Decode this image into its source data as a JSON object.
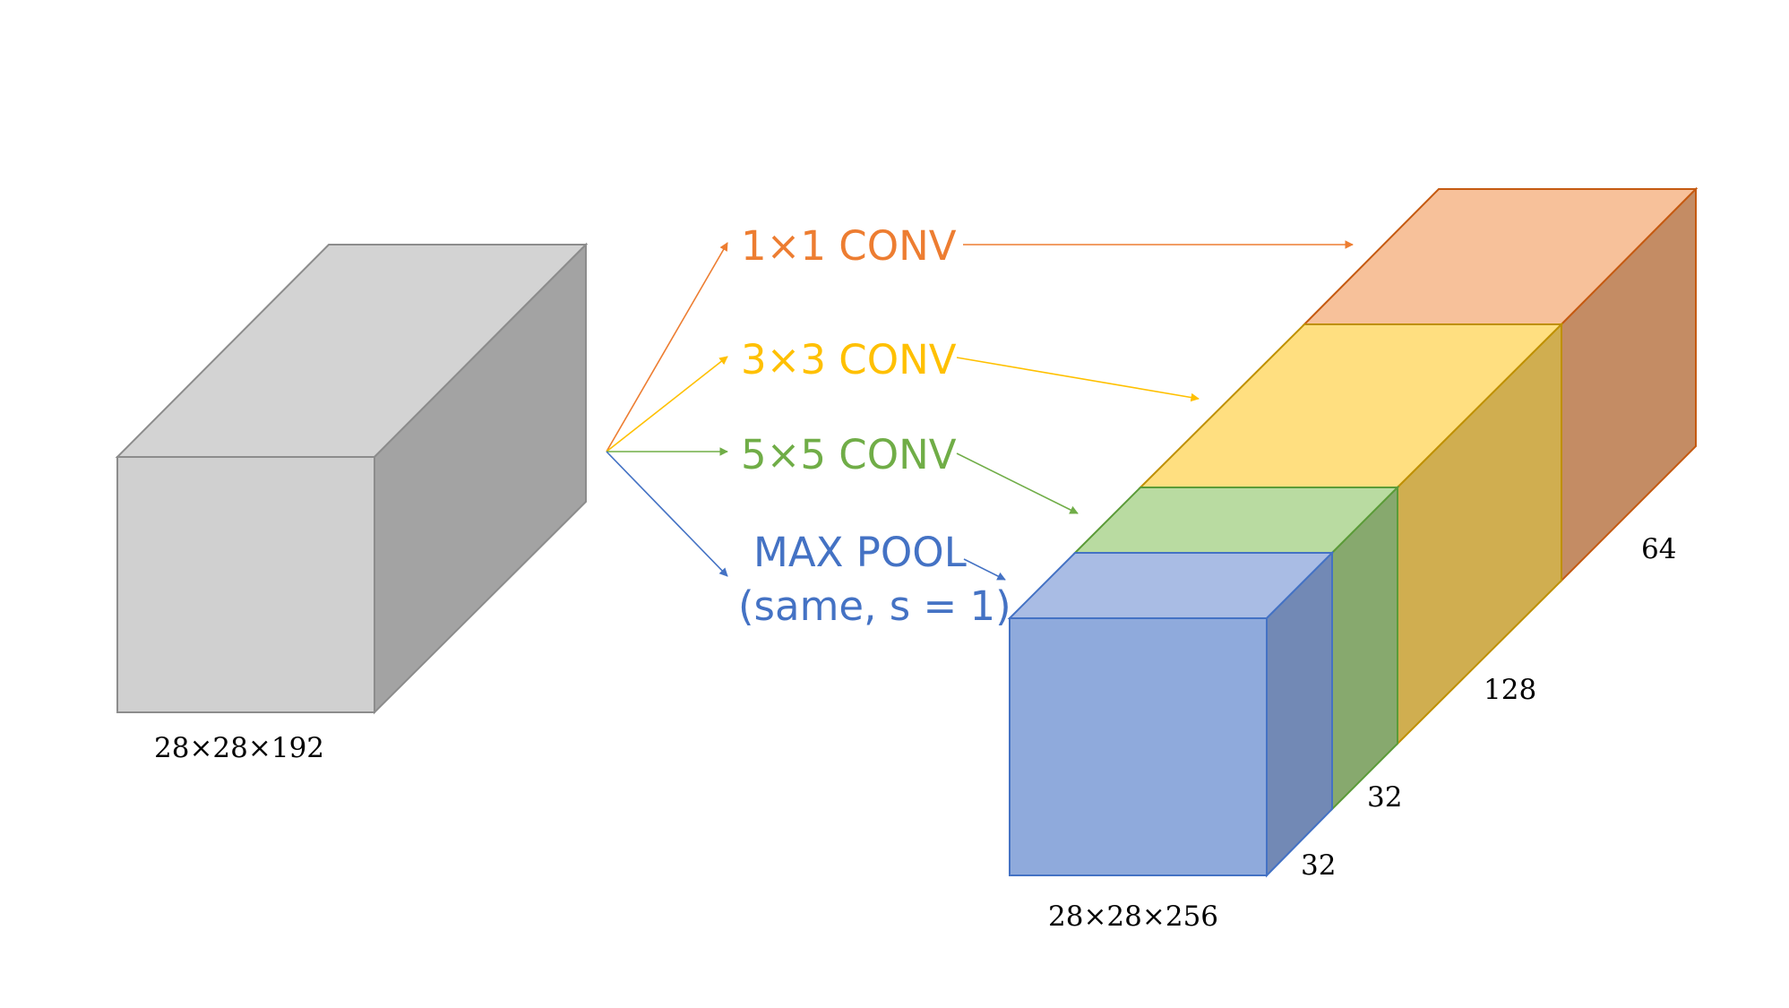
{
  "input_volume": {
    "dims_label": "28×28×192",
    "colors": {
      "front": "#D0D0D0",
      "top": "#D3D3D3",
      "side": "#A3A3A3",
      "stroke": "#8C8C8C"
    }
  },
  "operations": [
    {
      "label": "1×1 CONV",
      "color": "#ED7D31"
    },
    {
      "label": "3×3 CONV",
      "color": "#FFC000"
    },
    {
      "label": "5×5 CONV",
      "color": "#70AD47"
    },
    {
      "label_line1": "MAX POOL",
      "label_line2": "(same, s = 1)",
      "color": "#4472C4"
    }
  ],
  "output_volume": {
    "dims_label": "28×28×256",
    "blocks": [
      {
        "channels_label": "32",
        "colors": {
          "front": "#8FAADC",
          "top": "#A9BCE4",
          "side": "#7289B5",
          "stroke": "#4472C4"
        }
      },
      {
        "channels_label": "32",
        "colors": {
          "top": "#B9DBA1",
          "side": "#87A96E",
          "stroke": "#5B9B38"
        }
      },
      {
        "channels_label": "128",
        "colors": {
          "top": "#FFDF80",
          "side": "#D0AE50",
          "stroke": "#BF9000"
        }
      },
      {
        "channels_label": "64",
        "colors": {
          "top": "#F7C19A",
          "side": "#C48C64",
          "stroke": "#C55A11"
        }
      }
    ]
  }
}
